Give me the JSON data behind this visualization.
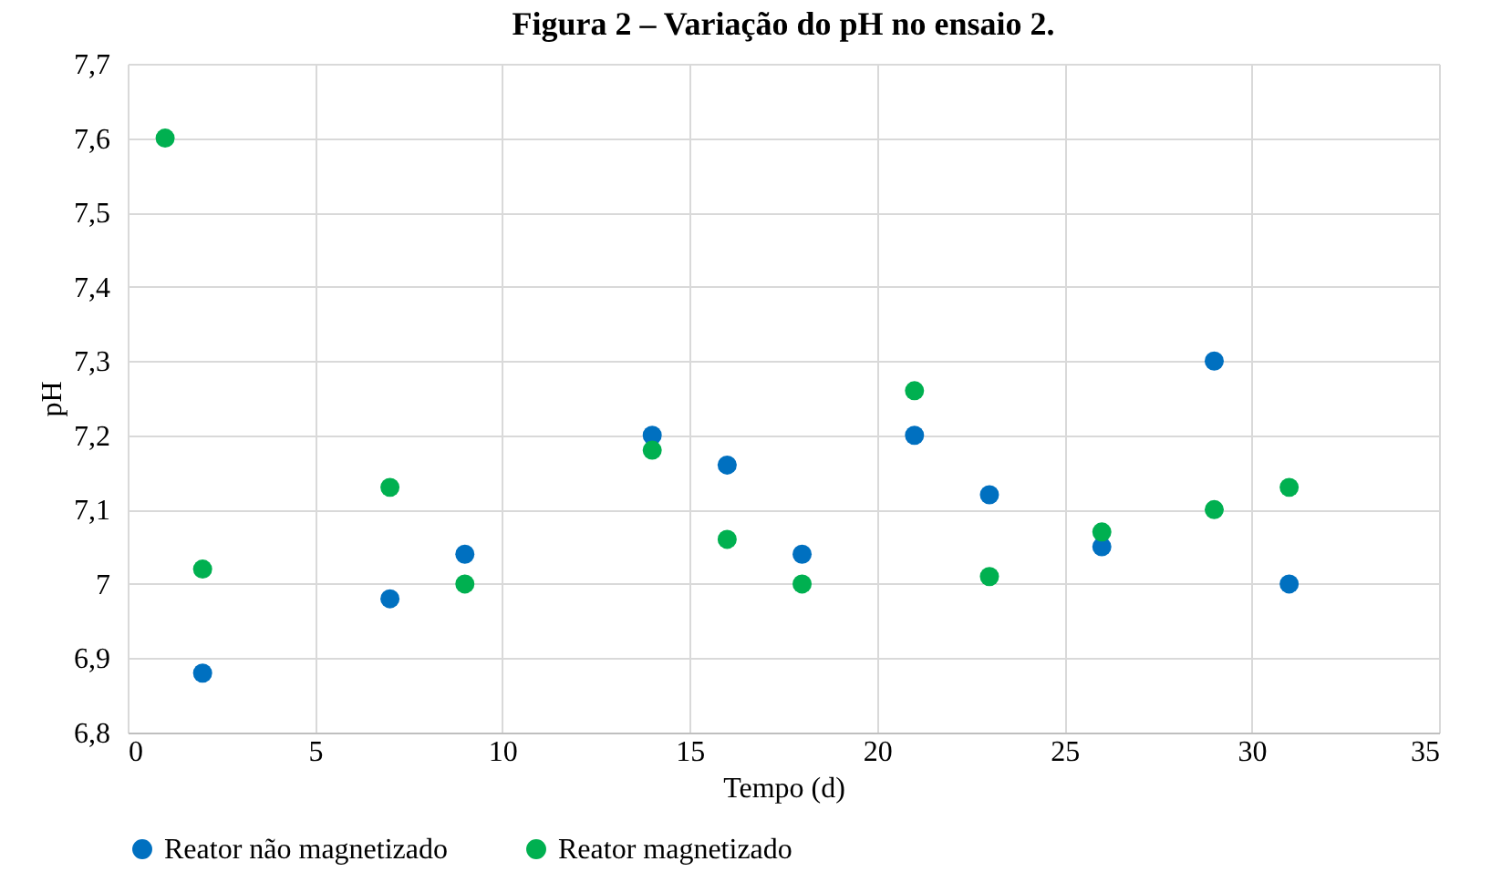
{
  "chart_data": {
    "type": "scatter",
    "title": "Figura 2 – Variação do pH no ensaio 2.",
    "xlabel": "Tempo (d)",
    "ylabel": "pH",
    "series": [
      {
        "name": "Reator não magnetizado",
        "color": "#0070c0",
        "x": [
          2,
          7,
          9,
          14,
          16,
          18,
          21,
          23,
          26,
          29,
          31
        ],
        "values": [
          6.88,
          6.98,
          7.04,
          7.2,
          7.16,
          7.04,
          7.2,
          7.12,
          7.05,
          7.3,
          7.0
        ]
      },
      {
        "name": "Reator magnetizado",
        "color": "#00b050",
        "x": [
          1,
          2,
          7,
          9,
          14,
          16,
          18,
          21,
          23,
          26,
          29,
          31
        ],
        "values": [
          7.6,
          7.02,
          7.13,
          7.0,
          7.18,
          7.06,
          7.0,
          7.26,
          7.01,
          7.07,
          7.1,
          7.13
        ]
      }
    ],
    "xlim": [
      0,
      35
    ],
    "xticks": [
      0,
      5,
      10,
      15,
      20,
      25,
      30,
      35
    ],
    "ylim": [
      6.8,
      7.7
    ],
    "yticks": [
      {
        "value": 6.8,
        "label": "6,8"
      },
      {
        "value": 6.9,
        "label": "6,9"
      },
      {
        "value": 7.0,
        "label": "7"
      },
      {
        "value": 7.1,
        "label": "7,1"
      },
      {
        "value": 7.2,
        "label": "7,2"
      },
      {
        "value": 7.3,
        "label": "7,3"
      },
      {
        "value": 7.4,
        "label": "7,4"
      },
      {
        "value": 7.5,
        "label": "7,5"
      },
      {
        "value": 7.6,
        "label": "7,6"
      },
      {
        "value": 7.7,
        "label": "7,7"
      }
    ],
    "grid": true,
    "legend": "bottom",
    "marker": "circle"
  }
}
